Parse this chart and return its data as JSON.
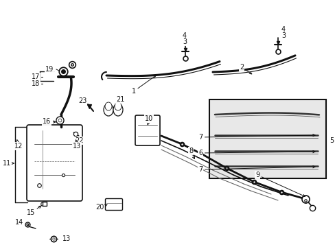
{
  "bg_color": "#ffffff",
  "fig_width": 4.89,
  "fig_height": 3.6,
  "dpi": 100,
  "black": "#111111",
  "gray": "#666666",
  "lightgray": "#dddddd",
  "inset_bg": "#e8e8e8"
}
